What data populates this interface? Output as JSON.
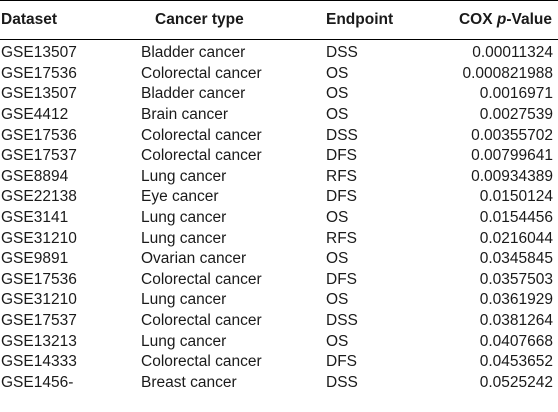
{
  "header": {
    "dataset": "Dataset",
    "cancer_type": "Cancer type",
    "endpoint": "Endpoint",
    "cox_prefix": "COX ",
    "cox_p": "p",
    "cox_suffix": "-Value"
  },
  "rows": [
    {
      "dataset": "GSE13507",
      "cancer": "Bladder cancer",
      "endpoint": "DSS",
      "p": "0.00011324"
    },
    {
      "dataset": "GSE17536",
      "cancer": "Colorectal cancer",
      "endpoint": "OS",
      "p": "0.000821988"
    },
    {
      "dataset": "GSE13507",
      "cancer": "Bladder cancer",
      "endpoint": "OS",
      "p": "0.0016971"
    },
    {
      "dataset": "GSE4412",
      "cancer": "Brain cancer",
      "endpoint": "OS",
      "p": "0.0027539"
    },
    {
      "dataset": "GSE17536",
      "cancer": "Colorectal cancer",
      "endpoint": "DSS",
      "p": "0.00355702"
    },
    {
      "dataset": "GSE17537",
      "cancer": "Colorectal cancer",
      "endpoint": "DFS",
      "p": "0.00799641"
    },
    {
      "dataset": "GSE8894",
      "cancer": "Lung cancer",
      "endpoint": "RFS",
      "p": "0.00934389"
    },
    {
      "dataset": "GSE22138",
      "cancer": "Eye cancer",
      "endpoint": "DFS",
      "p": "0.0150124"
    },
    {
      "dataset": "GSE3141",
      "cancer": "Lung cancer",
      "endpoint": "OS",
      "p": "0.0154456"
    },
    {
      "dataset": "GSE31210",
      "cancer": "Lung cancer",
      "endpoint": "RFS",
      "p": "0.0216044"
    },
    {
      "dataset": "GSE9891",
      "cancer": "Ovarian cancer",
      "endpoint": "OS",
      "p": "0.0345845"
    },
    {
      "dataset": "GSE17536",
      "cancer": "Colorectal cancer",
      "endpoint": "DFS",
      "p": "0.0357503"
    },
    {
      "dataset": "GSE31210",
      "cancer": "Lung cancer",
      "endpoint": "OS",
      "p": "0.0361929"
    },
    {
      "dataset": "GSE17537",
      "cancer": "Colorectal cancer",
      "endpoint": "DSS",
      "p": "0.0381264"
    },
    {
      "dataset": "GSE13213",
      "cancer": "Lung cancer",
      "endpoint": "OS",
      "p": "0.0407668"
    },
    {
      "dataset": "GSE14333",
      "cancer": "Colorectal cancer",
      "endpoint": "DFS",
      "p": "0.0453652"
    },
    {
      "dataset": "GSE1456-",
      "cancer": "Breast cancer",
      "endpoint": "DSS",
      "p": "0.0525242"
    }
  ]
}
